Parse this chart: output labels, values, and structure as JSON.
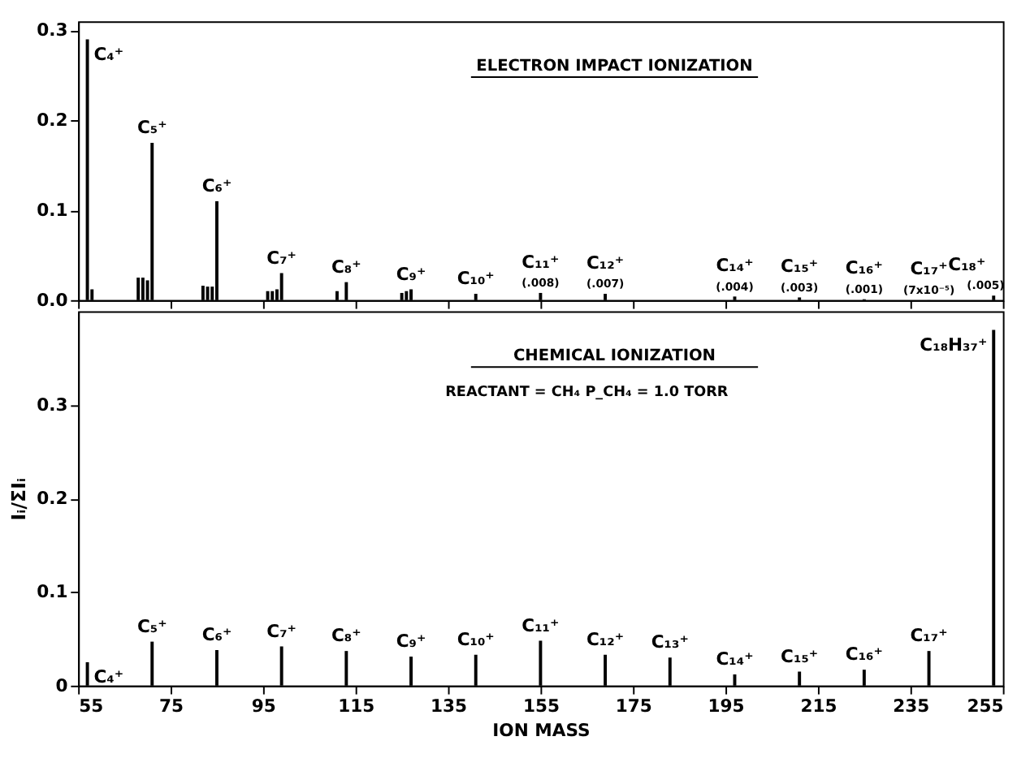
{
  "chart_data": [
    {
      "type": "bar",
      "title": "ELECTRON IMPACT IONIZATION",
      "x": [
        57,
        58,
        68,
        69,
        70,
        71,
        82,
        83,
        84,
        85,
        96,
        97,
        98,
        99,
        111,
        113,
        125,
        126,
        127,
        141,
        155,
        169,
        197,
        211,
        225,
        239,
        253
      ],
      "values": [
        0.29,
        0.012,
        0.025,
        0.025,
        0.022,
        0.175,
        0.016,
        0.015,
        0.015,
        0.11,
        0.01,
        0.01,
        0.012,
        0.03,
        0.01,
        0.02,
        0.008,
        0.01,
        0.012,
        0.007,
        0.008,
        0.007,
        0.004,
        0.003,
        0.001,
        7e-05,
        0.005
      ],
      "value_labels": [
        null,
        null,
        null,
        null,
        null,
        null,
        null,
        null,
        null,
        null,
        null,
        null,
        null,
        null,
        null,
        null,
        null,
        null,
        null,
        null,
        "(.008)",
        "(.007)",
        "(.004)",
        "(.003)",
        "(.001)",
        "(7x10⁻⁵)",
        "(.005)"
      ],
      "color": "#000000",
      "xlim": [
        55,
        255
      ],
      "xticks": [
        55,
        75,
        95,
        115,
        135,
        155,
        175,
        195,
        215,
        235,
        255
      ],
      "ylim": [
        0,
        0.31
      ],
      "yticks": [
        {
          "value": 0,
          "label": "0.0"
        },
        0.1,
        0.2,
        0.3
      ],
      "tick_labels": "y",
      "annotations": [
        {
          "text": "C₄⁺",
          "x": 57,
          "y": 0.29
        },
        {
          "text": "C₅⁺",
          "x": 71,
          "y": 0.175
        },
        {
          "text": "C₆⁺",
          "x": 85,
          "y": 0.11
        },
        {
          "text": "C₇⁺",
          "x": 99,
          "y": 0.03
        },
        {
          "text": "C₈⁺",
          "x": 113,
          "y": 0.02
        },
        {
          "text": "C₉⁺",
          "x": 127,
          "y": 0.012
        },
        {
          "text": "C₁₀⁺",
          "x": 141,
          "y": 0.007
        },
        {
          "text": "C₁₁⁺",
          "x": 155,
          "y": 0.008
        },
        {
          "text": "C₁₂⁺",
          "x": 169,
          "y": 0.007
        },
        {
          "text": "C₁₄⁺",
          "x": 197,
          "y": 0.004
        },
        {
          "text": "C₁₅⁺",
          "x": 211,
          "y": 0.003
        },
        {
          "text": "C₁₆⁺",
          "x": 225,
          "y": 0.001
        },
        {
          "text": "C₁₇⁺",
          "x": 239,
          "y": 7e-05
        },
        {
          "text": "C₁₈⁺",
          "x": 253,
          "y": 0.005
        }
      ]
    },
    {
      "type": "bar",
      "title": "CHEMICAL IONIZATION",
      "subtitle": "REACTANT = CH₄    P_CH₄ = 1.0 TORR",
      "xlabel": "ION MASS",
      "ylabel": "Iᵢ/ΣIᵢ",
      "x": [
        57,
        71,
        85,
        99,
        113,
        127,
        141,
        155,
        169,
        183,
        197,
        211,
        225,
        239,
        253
      ],
      "values": [
        0.025,
        0.047,
        0.038,
        0.042,
        0.037,
        0.031,
        0.033,
        0.048,
        0.033,
        0.03,
        0.012,
        0.015,
        0.017,
        0.037,
        0.38
      ],
      "color": "#000000",
      "xlim": [
        55,
        255
      ],
      "xticks": [
        55,
        75,
        95,
        115,
        135,
        155,
        175,
        195,
        215,
        235,
        255
      ],
      "ylim": [
        0,
        0.4
      ],
      "yticks": [
        0,
        0.1,
        0.2,
        0.3
      ],
      "annotations": [
        {
          "text": "C₄⁺",
          "x": 57,
          "y": 0.025
        },
        {
          "text": "C₅⁺",
          "x": 71,
          "y": 0.047
        },
        {
          "text": "C₆⁺",
          "x": 85,
          "y": 0.038
        },
        {
          "text": "C₇⁺",
          "x": 99,
          "y": 0.042
        },
        {
          "text": "C₈⁺",
          "x": 113,
          "y": 0.037
        },
        {
          "text": "C₉⁺",
          "x": 127,
          "y": 0.031
        },
        {
          "text": "C₁₀⁺",
          "x": 141,
          "y": 0.033
        },
        {
          "text": "C₁₁⁺",
          "x": 155,
          "y": 0.048
        },
        {
          "text": "C₁₂⁺",
          "x": 169,
          "y": 0.033
        },
        {
          "text": "C₁₃⁺",
          "x": 183,
          "y": 0.03
        },
        {
          "text": "C₁₄⁺",
          "x": 197,
          "y": 0.012
        },
        {
          "text": "C₁₅⁺",
          "x": 211,
          "y": 0.015
        },
        {
          "text": "C₁₆⁺",
          "x": 225,
          "y": 0.017
        },
        {
          "text": "C₁₇⁺",
          "x": 239,
          "y": 0.037
        },
        {
          "text": "C₁₈H₃₇⁺",
          "x": 253,
          "y": 0.38
        }
      ]
    }
  ]
}
